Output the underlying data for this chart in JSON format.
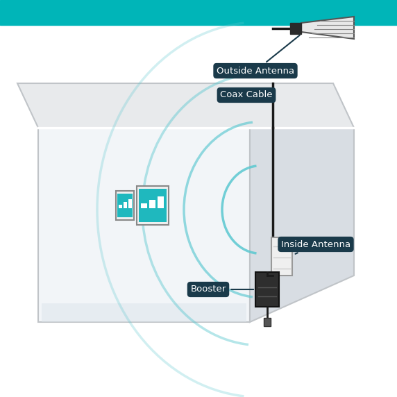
{
  "bg_color": "#ffffff",
  "teal_bar_color": "#00B5B8",
  "label_bg_color": "#1a3a4a",
  "label_text_color": "#ffffff",
  "signal_arc_color": "#5BC8D0",
  "outside_antenna_label": "Outside Antenna",
  "coax_cable_label": "Coax Cable",
  "booster_label": "Booster",
  "inside_antenna_label": "Inside Antenna",
  "roof_face_color": "#e8eaec",
  "roof_edge_color": "#c0c4c8",
  "wall_face_color": "#f2f5f8",
  "wall_edge_color": "#c0c4c8",
  "side_face_color": "#d8dde3",
  "arc_radii": [
    55,
    110,
    170,
    235
  ],
  "arc_alphas": [
    0.85,
    0.65,
    0.45,
    0.28
  ]
}
